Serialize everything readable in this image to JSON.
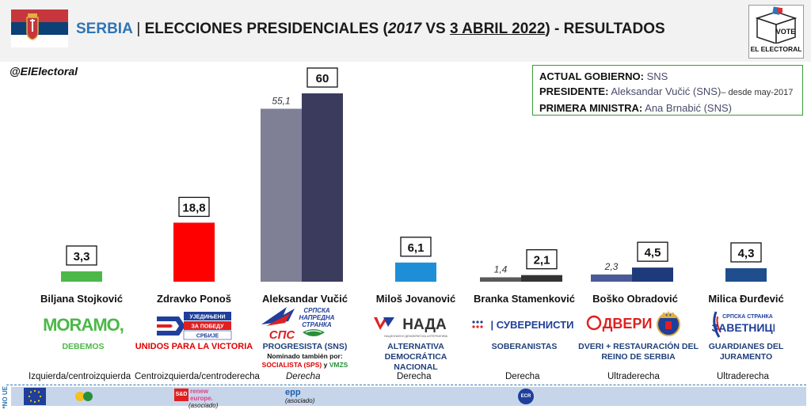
{
  "header": {
    "country": "SERBIA",
    "separator": "|",
    "title_main": "ELECCIONES PRESIDENCIALES",
    "title_paren_open": "(",
    "title_year": "2017",
    "title_vs": " VS ",
    "title_date": "3 ABRIL 2022",
    "title_paren_close": ")",
    "title_suffix": " - RESULTADOS",
    "vote_text": "VOTE",
    "brand": "EL ELECTORAL"
  },
  "handle": "@ElElectoral",
  "government": {
    "gov_label": "ACTUAL GOBIERNO:",
    "gov_value": "SNS",
    "pres_label": "PRESIDENTE:",
    "pres_value": "Aleksandar Vučić (SNS)",
    "pres_since": "– desde may-2017",
    "pm_label": "PRIMERA MINISTRA:",
    "pm_value": "Ana Brnabić (SNS)"
  },
  "chart_data": {
    "type": "bar",
    "categories": [
      "Biljana Stojković",
      "Zdravko Ponoš",
      "Aleksandar Vučić",
      "Miloš Jovanović",
      "Branka Stamenković",
      "Boško Obradović",
      "Milica Đurđević"
    ],
    "series": [
      {
        "values": [
          null,
          null,
          55.1,
          null,
          1.4,
          2.3,
          null
        ],
        "labels": [
          null,
          null,
          "55,1",
          null,
          "1,4",
          "2,3",
          null
        ]
      },
      {
        "values": [
          3.3,
          18.8,
          60,
          6.1,
          2.1,
          4.5,
          4.3
        ],
        "labels": [
          "3,3",
          "18,8",
          "60",
          "6,1",
          "2,1",
          "4,5",
          "4,3"
        ]
      }
    ],
    "colors_2017": [
      "",
      "",
      "#7f7f95",
      "",
      "#595959",
      "#4a5a98",
      ""
    ],
    "colors_2022": [
      "#4cb849",
      "#ff0000",
      "#3b3b5e",
      "#1e8fd6",
      "#333333",
      "#1f3a7a",
      "#1f4e8c"
    ],
    "ylim": [
      0,
      65
    ]
  },
  "candidates": [
    {
      "name": "Biljana Stojković",
      "logo": "MORAMO,",
      "party": "DEBEMOS",
      "party_color": "#4cb849",
      "ideology": "Izquierda/centroizquierda"
    },
    {
      "name": "Zdravko Ponoš",
      "logo": [
        "УЈЕДИЊЕНИ",
        "ЗА ПОБЕДУ",
        "СРБИЈЕ"
      ],
      "party": "UNIDOS PARA  LA VICTORIA",
      "party_color": "#e00000",
      "ideology": "Centroizquierda/centroderecha"
    },
    {
      "name": "Aleksandar Vučić",
      "logo": [
        "СРПСКА",
        "НАПРЕДНА",
        "СТРАНКА",
        "СПС"
      ],
      "party": "PROGRESISTA (SNS)",
      "party_color": "#1f3f7a",
      "note_label": "Nominado también por:",
      "note_socialista": "SOCIALISTA (SPS)",
      "note_y": " y ",
      "note_vmzs": "VMZS",
      "ideology": "Derecha"
    },
    {
      "name": "Miloš Jovanović",
      "logo": [
        "НАДА",
        "НАЦИОНАЛНО ДЕМОКРАТСКА АЛТЕРНАТИВА"
      ],
      "party": "ALTERNATIVA DEMOCRÁTICA NACIONAL",
      "party_color": "#1f3f7a",
      "ideology": "Derecha"
    },
    {
      "name": "Branka Stamenković",
      "logo": "| СУВЕРЕНИСТИ",
      "party": "SOBERANISTAS",
      "party_color": "#1f3f7a",
      "ideology": "Derecha"
    },
    {
      "name": "Boško Obradović",
      "logo": "ДВЕРИ",
      "party": "DVERI + RESTAURACIÓN DEL REINO DE SERBIA",
      "party_color": "#1f3f7a",
      "ideology": "Ultraderecha"
    },
    {
      "name": "Milica Đurđević",
      "logo": [
        "СРПСКА СТРАНКА",
        "ЗАВЕТНИЦИ"
      ],
      "party": "GUARDIANES DEL JURAMENTO",
      "party_color": "#1f3f7a",
      "ideology": "Ultraderecha"
    }
  ],
  "eu_groups": {
    "non_eu": "*NO UE",
    "renew_a": "renew",
    "renew_b": "europe.",
    "renew_c": "(asociado)",
    "sd": "S&D",
    "epp": "epp",
    "epp_sub": "(asociado)",
    "ecr": "ECR"
  }
}
